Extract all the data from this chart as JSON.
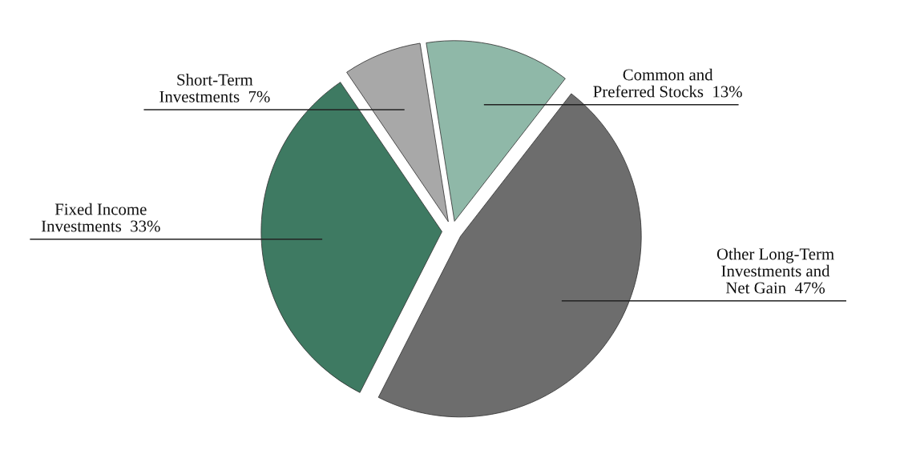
{
  "chart_data": {
    "type": "pie",
    "categories": [
      "Common and\nPreferred Stocks  13%",
      "Other Long-Term\nInvestments and\nNet Gain  47%",
      "Fixed Income\nInvestments  33%",
      "Short-Term\nInvestments  7%"
    ],
    "values": [
      13,
      47,
      33,
      7
    ],
    "colors": [
      "#8fb8a8",
      "#6d6d6d",
      "#3e7a62",
      "#a8a8a8"
    ]
  }
}
